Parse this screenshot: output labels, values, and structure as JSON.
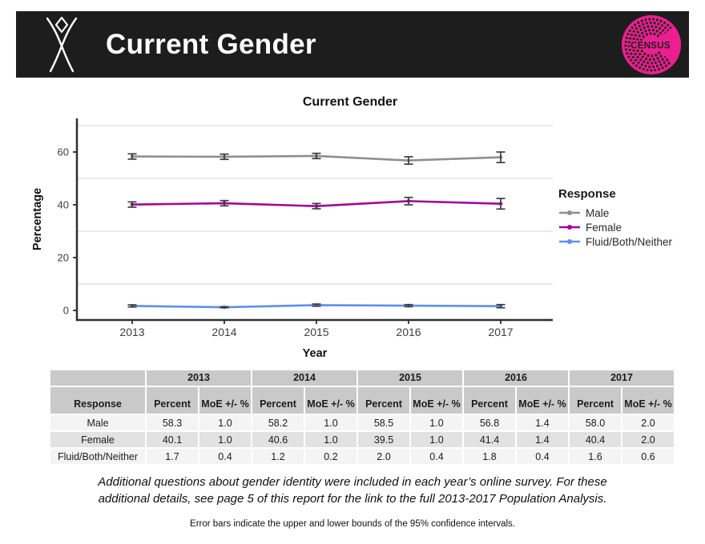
{
  "header": {
    "title": "Current Gender",
    "badge_text": "CENSUS",
    "bar_color": "#1d1d1d",
    "accent_pink": "#eb1f90"
  },
  "chart_data": {
    "type": "line",
    "title": "Current Gender",
    "xlabel": "Year",
    "ylabel": "Percentage",
    "legend_title": "Response",
    "legend_position": "right",
    "x": [
      2013,
      2014,
      2015,
      2016,
      2017
    ],
    "yticks": [
      0,
      20,
      40,
      60
    ],
    "gridlines": [
      10,
      30,
      50,
      70
    ],
    "ylim": [
      -3.6,
      72.7
    ],
    "grid": "horizontal-only",
    "error_bar_color": "#3d3d3d",
    "series": [
      {
        "name": "Male",
        "color": "#8f8f8f",
        "values": [
          58.3,
          58.2,
          58.5,
          56.8,
          58.0
        ],
        "moe": [
          1.0,
          1.0,
          1.0,
          1.4,
          2.0
        ]
      },
      {
        "name": "Female",
        "color": "#a0069e",
        "values": [
          40.1,
          40.6,
          39.5,
          41.4,
          40.4
        ],
        "moe": [
          1.0,
          1.0,
          1.0,
          1.4,
          2.0
        ]
      },
      {
        "name": "Fluid/Both/Neither",
        "color": "#5d8ff0",
        "values": [
          1.7,
          1.2,
          2.0,
          1.8,
          1.6
        ],
        "moe": [
          0.4,
          0.2,
          0.4,
          0.4,
          0.6
        ]
      }
    ]
  },
  "table": {
    "response_header": "Response",
    "years": [
      "2013",
      "2014",
      "2015",
      "2016",
      "2017"
    ],
    "sub_headers": [
      "Percent",
      "MoE +/- %"
    ],
    "rows": [
      {
        "label": "Male",
        "cells": [
          "58.3",
          "1.0",
          "58.2",
          "1.0",
          "58.5",
          "1.0",
          "56.8",
          "1.4",
          "58.0",
          "2.0"
        ]
      },
      {
        "label": "Female",
        "cells": [
          "40.1",
          "1.0",
          "40.6",
          "1.0",
          "39.5",
          "1.0",
          "41.4",
          "1.4",
          "40.4",
          "2.0"
        ]
      },
      {
        "label": "Fluid/Both/Neither",
        "cells": [
          "1.7",
          "0.4",
          "1.2",
          "0.2",
          "2.0",
          "0.4",
          "1.8",
          "0.4",
          "1.6",
          "0.6"
        ]
      }
    ]
  },
  "notes": {
    "italic_line1": "Additional questions about gender identity were included in each year’s online survey. For these",
    "italic_line2": "additional details, see page 5 of this report for the link to the full 2013-2017 Population Analysis.",
    "footnote": "Error bars indicate the upper and lower bounds of the 95% confidence intervals."
  }
}
